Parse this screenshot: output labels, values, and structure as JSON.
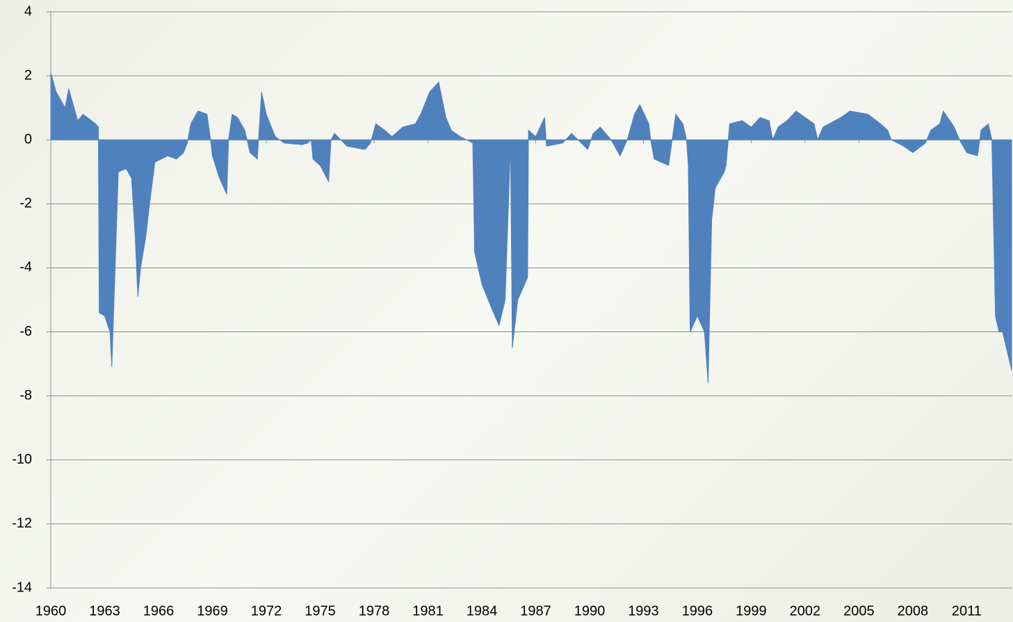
{
  "chart_data": {
    "type": "area",
    "color": "#4f81bd",
    "grid": true,
    "x": [
      1960.0,
      1960.3,
      1960.8,
      1961.0,
      1961.5,
      1961.8,
      1962.5,
      1962.65,
      1962.7,
      1963.0,
      1963.3,
      1963.4,
      1963.76,
      1964.2,
      1964.5,
      1964.7,
      1964.85,
      1965.0,
      1965.3,
      1965.5,
      1965.8,
      1966.5,
      1967.0,
      1967.4,
      1967.6,
      1967.8,
      1968.2,
      1968.7,
      1968.9,
      1969.0,
      1969.4,
      1969.8,
      1969.9,
      1970.1,
      1970.4,
      1970.8,
      1971.1,
      1971.5,
      1971.74,
      1972.0,
      1972.5,
      1973.0,
      1974.0,
      1974.3,
      1974.5,
      1974.6,
      1975.0,
      1975.47,
      1975.6,
      1975.8,
      1976.5,
      1977.5,
      1977.8,
      1978.1,
      1978.6,
      1979.0,
      1979.6,
      1980.3,
      1980.6,
      1981.1,
      1981.6,
      1982.0,
      1982.3,
      1982.8,
      1983.5,
      1983.6,
      1984.0,
      1984.5,
      1984.96,
      1985.3,
      1985.6,
      1985.7,
      1986.0,
      1986.55,
      1986.6,
      1987.0,
      1987.5,
      1987.6,
      1988.5,
      1989.0,
      1989.9,
      1990.2,
      1990.6,
      1991.2,
      1991.7,
      1992.1,
      1992.5,
      1992.8,
      1993.3,
      1993.4,
      1993.6,
      1994.4,
      1994.8,
      1995.2,
      1995.4,
      1995.5,
      1995.6,
      1996.0,
      1996.4,
      1996.6,
      1996.8,
      1997.0,
      1997.5,
      1997.6,
      1997.8,
      1998.5,
      1999.0,
      1999.5,
      2000.0,
      2000.2,
      2000.5,
      2001.0,
      2001.5,
      2002.0,
      2002.5,
      2002.7,
      2003.0,
      2004.0,
      2004.5,
      2005.5,
      2006.2,
      2006.6,
      2006.8,
      2007.5,
      2008.0,
      2008.7,
      2009.0,
      2009.5,
      2009.7,
      2010.3,
      2010.6,
      2011.0,
      2011.6,
      2011.8,
      2012.2,
      2012.4,
      2012.6,
      2012.8,
      2013.0,
      2013.5
    ],
    "values": [
      2.1,
      1.5,
      1.0,
      1.6,
      0.6,
      0.8,
      0.5,
      0.4,
      -5.4,
      -5.5,
      -6.0,
      -7.1,
      -1.0,
      -0.9,
      -1.2,
      -3.0,
      -4.9,
      -4.0,
      -3.0,
      -2.0,
      -0.7,
      -0.5,
      -0.6,
      -0.4,
      -0.1,
      0.5,
      0.9,
      0.8,
      0,
      -0.5,
      -1.2,
      -1.7,
      0,
      0.8,
      0.7,
      0.3,
      -0.4,
      -0.6,
      1.5,
      0.8,
      0.1,
      -0.1,
      -0.15,
      -0.1,
      0,
      -0.6,
      -0.8,
      -1.3,
      0,
      0.2,
      -0.2,
      -0.3,
      -0.1,
      0.5,
      0.3,
      0.1,
      0.4,
      0.5,
      0.8,
      1.5,
      1.8,
      0.7,
      0.3,
      0.1,
      -0.1,
      -3.5,
      -4.5,
      -5.2,
      -5.8,
      -5.0,
      -0.1,
      -6.5,
      -5.0,
      -4.3,
      0.3,
      0.1,
      0.7,
      -0.2,
      -0.1,
      0.2,
      -0.3,
      0.2,
      0.4,
      0,
      -0.5,
      0,
      0.8,
      1.1,
      0.5,
      0,
      -0.6,
      -0.8,
      0.8,
      0.5,
      0,
      -0.8,
      -6.0,
      -5.5,
      -6.0,
      -7.6,
      -2.5,
      -1.5,
      -1.0,
      -0.8,
      0.5,
      0.6,
      0.4,
      0.7,
      0.6,
      0,
      0.4,
      0.6,
      0.9,
      0.7,
      0.5,
      0,
      0.4,
      0.7,
      0.9,
      0.8,
      0.5,
      0.3,
      0,
      -0.2,
      -0.4,
      -0.1,
      0.3,
      0.5,
      0.9,
      0.4,
      0,
      -0.4,
      -0.5,
      0.3,
      0.5,
      0,
      -5.5,
      -6.0,
      -6.0,
      -7.2
    ],
    "xlim": [
      1960,
      2013.5
    ],
    "xticks": [
      1960,
      1963,
      1966,
      1969,
      1972,
      1975,
      1978,
      1981,
      1984,
      1987,
      1990,
      1993,
      1996,
      1999,
      2002,
      2005,
      2008,
      2011
    ],
    "ylim": [
      -14,
      4
    ],
    "yticks": [
      4,
      2,
      0,
      -2,
      -4,
      -6,
      -8,
      -10,
      -12,
      -14
    ]
  }
}
